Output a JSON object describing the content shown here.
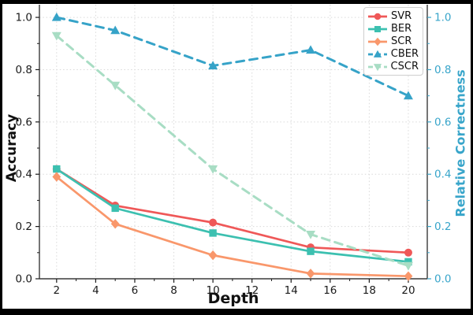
{
  "figure": {
    "background": "#ffffff",
    "frame_color": "#000000"
  },
  "chart_data": {
    "type": "line",
    "title": "",
    "xlabel": "Depth",
    "ylabel_left": "Accuracy",
    "ylabel_right": "Relative Correctness",
    "x_ticks": [
      2,
      4,
      6,
      8,
      10,
      12,
      14,
      16,
      18,
      20
    ],
    "y_tick_values": [
      0.0,
      0.2,
      0.4,
      0.6,
      0.8,
      1.0
    ],
    "y_tick_labels": [
      "0.0",
      "0.2",
      "0.4",
      "0.6",
      "0.8",
      "1.0"
    ],
    "xlim": [
      1.12,
      20.97
    ],
    "ylim": [
      0,
      1.0484
    ],
    "grid": true,
    "legend_position": "upper right",
    "x": [
      2,
      5,
      10,
      15,
      20
    ],
    "series": [
      {
        "name": "SVR",
        "axis": "left",
        "color": "#ef5858",
        "marker": "circle",
        "linestyle": "solid",
        "values": [
          0.42,
          0.28,
          0.215,
          0.12,
          0.1
        ]
      },
      {
        "name": "BER",
        "axis": "left",
        "color": "#3cc0b0",
        "marker": "square",
        "linestyle": "solid",
        "values": [
          0.42,
          0.27,
          0.175,
          0.105,
          0.065
        ]
      },
      {
        "name": "SCR",
        "axis": "left",
        "color": "#f9976b",
        "marker": "diamond",
        "linestyle": "solid",
        "values": [
          0.39,
          0.21,
          0.09,
          0.02,
          0.01
        ]
      },
      {
        "name": "CBER",
        "axis": "right",
        "color": "#36a3c8",
        "marker": "triangle-up",
        "linestyle": "dashed",
        "values": [
          1.0,
          0.95,
          0.815,
          0.875,
          0.7
        ]
      },
      {
        "name": "CSCR",
        "axis": "right",
        "color": "#a8ddc4",
        "marker": "triangle-down",
        "linestyle": "dashed",
        "values": [
          0.93,
          0.74,
          0.42,
          0.17,
          0.05
        ]
      }
    ],
    "style": {
      "left_axis_color": "#1a1a1a",
      "right_axis_color": "#38a5ca",
      "grid_color": "#d9d9d9",
      "spine_color": "#3a3a3a"
    }
  }
}
